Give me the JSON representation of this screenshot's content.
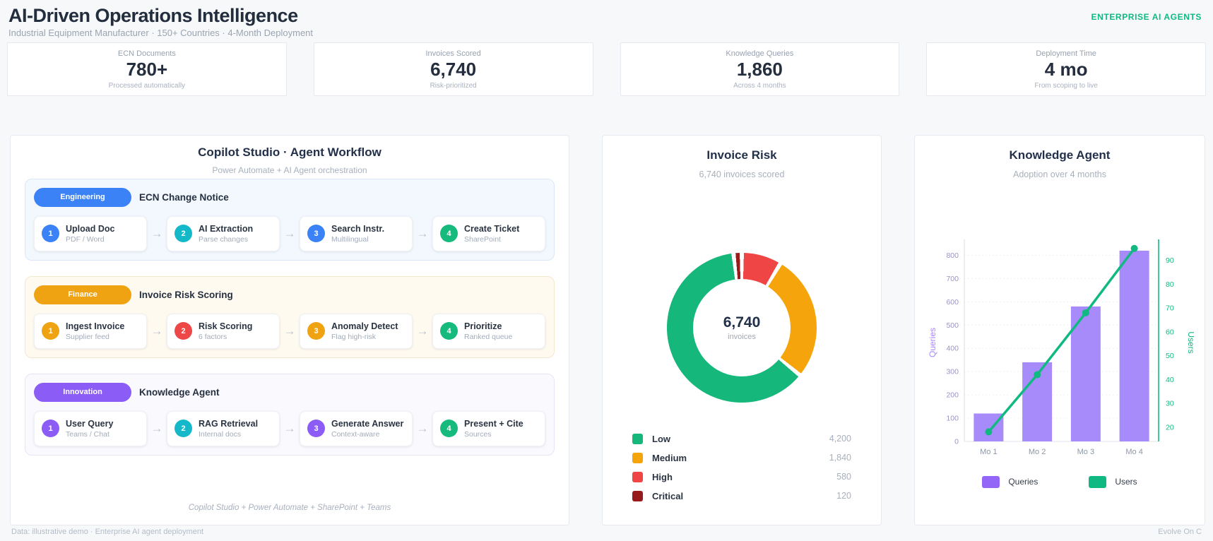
{
  "header": {
    "title": "AI-Driven Operations Intelligence",
    "subtitle": "Industrial Equipment Manufacturer · 150+ Countries · 4-Month Deployment",
    "badge": "ENTERPRISE AI AGENTS"
  },
  "kpis": [
    {
      "label": "ECN Documents",
      "value": "780+",
      "sub": "Processed automatically"
    },
    {
      "label": "Invoices Scored",
      "value": "6,740",
      "sub": "Risk-prioritized"
    },
    {
      "label": "Knowledge Queries",
      "value": "1,860",
      "sub": "Across 4 months"
    },
    {
      "label": "Deployment Time",
      "value": "4 mo",
      "sub": "From scoping to live"
    }
  ],
  "workflow": {
    "title": "Copilot Studio · Agent Workflow",
    "subtitle": "Power Automate + AI Agent orchestration",
    "arrow": "→",
    "footnote": "Copilot Studio + Power Automate + SharePoint + Teams",
    "lanes": [
      {
        "pill": "Engineering",
        "pill_color": "#3b82f6",
        "bg": "#f2f8fe",
        "border": "#dbe7f9",
        "label": "ECN Change Notice",
        "steps": [
          {
            "num": "1",
            "color": "#3b82f6",
            "title": "Upload Doc",
            "sub": "PDF / Word"
          },
          {
            "num": "2",
            "color": "#14b8c9",
            "title": "AI Extraction",
            "sub": "Parse changes"
          },
          {
            "num": "3",
            "color": "#3b82f6",
            "title": "Search Instr.",
            "sub": "Multilingual"
          },
          {
            "num": "4",
            "color": "#16ba7d",
            "title": "Create Ticket",
            "sub": "SharePoint"
          }
        ]
      },
      {
        "pill": "Finance",
        "pill_color": "#f0a312",
        "bg": "#fffaf0",
        "border": "#f3e8cd",
        "label": "Invoice Risk Scoring",
        "steps": [
          {
            "num": "1",
            "color": "#f0a312",
            "title": "Ingest Invoice",
            "sub": "Supplier feed"
          },
          {
            "num": "2",
            "color": "#ee4747",
            "title": "Risk Scoring",
            "sub": "6 factors"
          },
          {
            "num": "3",
            "color": "#f0a312",
            "title": "Anomaly Detect",
            "sub": "Flag high-risk"
          },
          {
            "num": "4",
            "color": "#16ba7d",
            "title": "Prioritize",
            "sub": "Ranked queue"
          }
        ]
      },
      {
        "pill": "Innovation",
        "pill_color": "#8b5cf6",
        "bg": "#faf9fe",
        "border": "#e8e3f7",
        "label": "Knowledge Agent",
        "steps": [
          {
            "num": "1",
            "color": "#8b5cf6",
            "title": "User Query",
            "sub": "Teams / Chat"
          },
          {
            "num": "2",
            "color": "#14b8c9",
            "title": "RAG Retrieval",
            "sub": "Internal docs"
          },
          {
            "num": "3",
            "color": "#8b5cf6",
            "title": "Generate Answer",
            "sub": "Context-aware"
          },
          {
            "num": "4",
            "color": "#16ba7d",
            "title": "Present + Cite",
            "sub": "Sources"
          }
        ]
      }
    ]
  },
  "invoice_risk": {
    "title": "Invoice Risk",
    "subtitle": "6,740 invoices scored",
    "center_value": "6,740",
    "center_label": "invoices",
    "legend": [
      {
        "label": "Low",
        "value": "4,200",
        "color": "#15b77a"
      },
      {
        "label": "Medium",
        "value": "1,840",
        "color": "#f5a50b"
      },
      {
        "label": "High",
        "value": "580",
        "color": "#ef4545"
      },
      {
        "label": "Critical",
        "value": "120",
        "color": "#971b1b"
      }
    ]
  },
  "knowledge": {
    "title": "Knowledge Agent",
    "subtitle": "Adoption over 4 months",
    "legend": [
      {
        "label": "Queries",
        "color": "#9466f8"
      },
      {
        "label": "Users",
        "color": "#10b981"
      }
    ]
  },
  "chart_data": [
    {
      "type": "pie",
      "title": "Invoice Risk",
      "subtitle": "6,740 invoices scored",
      "labels": [
        "Low",
        "Medium",
        "High",
        "Critical"
      ],
      "values": [
        4200,
        1840,
        580,
        120
      ],
      "colors": [
        "#15b77a",
        "#f5a50b",
        "#ef4545",
        "#971b1b"
      ],
      "donut": true,
      "center_text": "6,740 invoices",
      "total": 6740,
      "draw_order": [
        2,
        1,
        0,
        3
      ],
      "legend_position": "bottom"
    },
    {
      "type": "bar",
      "title": "Knowledge Agent",
      "subtitle": "Adoption over 4 months",
      "categories": [
        "Mo 1",
        "Mo 2",
        "Mo 3",
        "Mo 4"
      ],
      "series": [
        {
          "name": "Queries",
          "type": "bar",
          "axis": "left",
          "color": "#a78bfa",
          "values": [
            120,
            340,
            580,
            820
          ]
        },
        {
          "name": "Users",
          "type": "line",
          "axis": "right",
          "color": "#10b981",
          "values": [
            18,
            42,
            68,
            95
          ]
        }
      ],
      "left_axis": {
        "label": "Queries",
        "color": "#a78bfa",
        "tick_color": "#9a94c2",
        "ticks": [
          0,
          100,
          200,
          300,
          400,
          500,
          600,
          700,
          800
        ],
        "range": [
          0,
          850
        ]
      },
      "right_axis": {
        "label": "Users",
        "color": "#10b981",
        "ticks": [
          20,
          30,
          40,
          50,
          60,
          70,
          80,
          90
        ],
        "range": [
          14,
          97
        ]
      },
      "grid": true,
      "legend_position": "bottom"
    }
  ],
  "footer": {
    "left": "Data: illustrative demo · Enterprise AI agent deployment",
    "right": "Evolve On C"
  }
}
